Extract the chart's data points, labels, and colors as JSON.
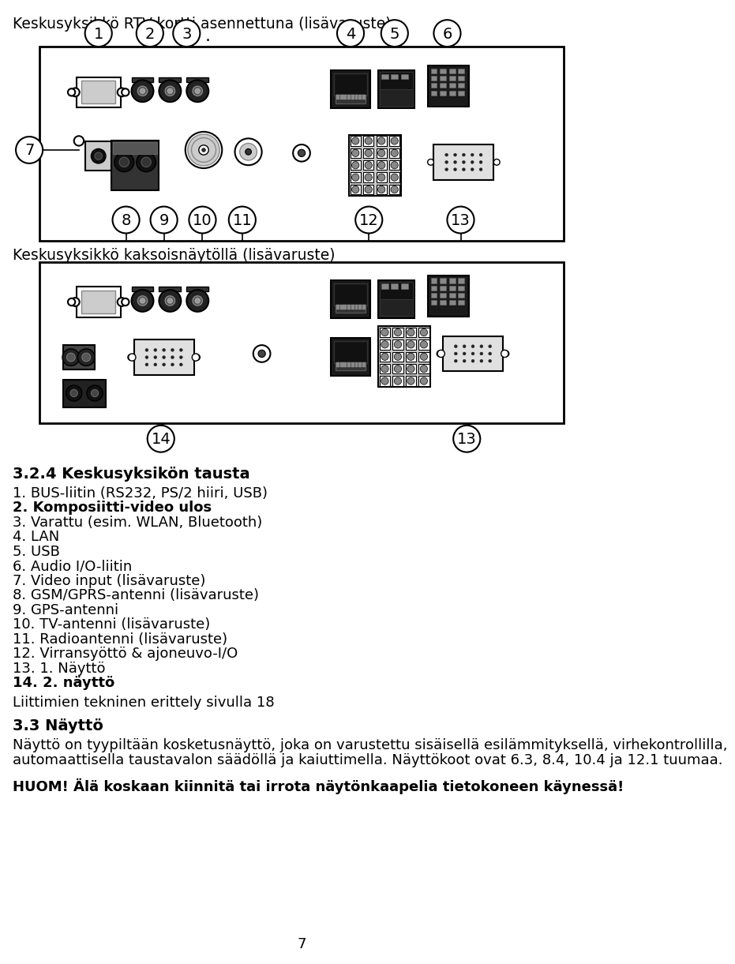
{
  "title1": "Keskusyksikkö RTV-kortti asennettuna (lisävaruste)",
  "title2": "Keskusyksikkö kaksoisnäytöllä (lisävaruste)",
  "section_title": "3.2.4 Keskusyksikön tausta",
  "list_items": [
    "1. BUS-liitin (RS232, PS/2 hiiri, USB)",
    "2. Komposiitti-video ulos",
    "3. Varattu (esim. WLAN, Bluetooth)",
    "4. LAN",
    "5. USB",
    "6. Audio I/O-liitin",
    "7. Video input (lisävaruste)",
    "8. GSM/GPRS-antenni (lisävaruste)",
    "9. GPS-antenni",
    "10. TV-antenni (lisävaruste)",
    "11. Radioantenni (lisävaruste)",
    "12. Virransyöttö & ajoneuvo-I/O",
    "13. 1. Näyttö",
    "14. 2. näyttö"
  ],
  "connector_note": "Liittimien tekninen erittely sivulla 18",
  "section33_title": "3.3 Näyttö",
  "section33_body": "Näyttö on tyypiltään kosketusnäyttö, joka on varustettu sisäisellä esilämmityksellä, virhekontrollilla,\nautomaattisella taustavalon säädöllä ja kaiuttimella. Näyttökoot ovat 6.3, 8.4, 10.4 ja 12.1 tuumaa.",
  "warning": "HUOM! Älä koskaan kiinnitä tai irrota näytönkaapelia tietokoneen käynessä!",
  "page_number": "7",
  "bg_color": "#ffffff"
}
